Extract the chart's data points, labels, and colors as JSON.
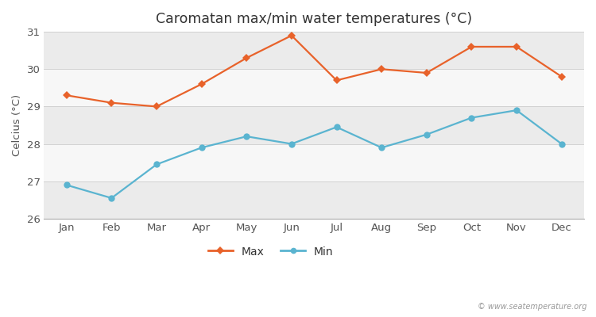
{
  "title": "Caromatan max/min water temperatures (°C)",
  "ylabel": "Celcius (°C)",
  "months": [
    "Jan",
    "Feb",
    "Mar",
    "Apr",
    "May",
    "Jun",
    "Jul",
    "Aug",
    "Sep",
    "Oct",
    "Nov",
    "Dec"
  ],
  "max_values": [
    29.3,
    29.1,
    29.0,
    29.6,
    30.3,
    30.9,
    29.7,
    30.0,
    29.9,
    30.6,
    30.6,
    29.8
  ],
  "min_values": [
    26.9,
    26.55,
    27.45,
    27.9,
    28.2,
    28.0,
    28.45,
    27.9,
    28.25,
    28.7,
    28.9,
    28.0
  ],
  "max_color": "#e8622a",
  "min_color": "#5ab4d0",
  "fig_bg_color": "#ffffff",
  "plot_bg_color": "#ffffff",
  "band_colors": [
    "#ebebeb",
    "#f7f7f7"
  ],
  "ylim": [
    26.0,
    31.0
  ],
  "yticks": [
    26,
    27,
    28,
    29,
    30,
    31
  ],
  "watermark": "© www.seatemperature.org",
  "legend_max": "Max",
  "legend_min": "Min"
}
